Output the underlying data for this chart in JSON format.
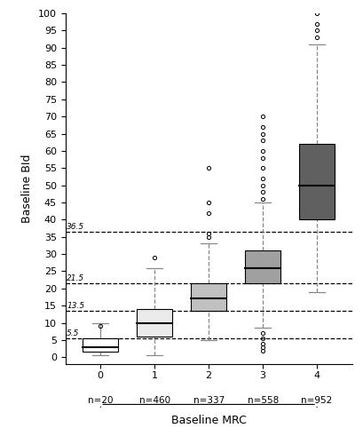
{
  "xlabel": "Baseline MRC",
  "ylabel": "Baseline BId",
  "ylim": [
    -2,
    100
  ],
  "yticks": [
    0,
    5,
    10,
    15,
    20,
    25,
    30,
    35,
    40,
    45,
    50,
    55,
    60,
    65,
    70,
    75,
    80,
    85,
    90,
    95,
    100
  ],
  "group_labels": [
    "0",
    "1",
    "2",
    "3",
    "4"
  ],
  "n_labels": [
    "n=20",
    "n=460",
    "n=337",
    "n=558",
    "n=952"
  ],
  "box_colors": [
    "#ffffff",
    "#ebebeb",
    "#c0c0c0",
    "#a0a0a0",
    "#606060"
  ],
  "box_stats": [
    {
      "q1": 1.5,
      "median": 3.0,
      "q3": 5.5,
      "whislo": 0.5,
      "whishi": 10.0,
      "fliers": [
        9.0
      ]
    },
    {
      "q1": 6.0,
      "median": 10.0,
      "q3": 14.0,
      "whislo": 0.5,
      "whishi": 26.0,
      "fliers": [
        29.0
      ]
    },
    {
      "q1": 13.5,
      "median": 17.0,
      "q3": 21.5,
      "whislo": 5.0,
      "whishi": 33.0,
      "fliers": [
        35.0,
        36.0,
        42.0,
        45.0,
        55.0
      ]
    },
    {
      "q1": 21.5,
      "median": 26.0,
      "q3": 31.0,
      "whislo": 8.5,
      "whishi": 45.0,
      "fliers": [
        2.0,
        3.0,
        4.0,
        5.5,
        7.0,
        46.0,
        48.0,
        50.0,
        52.0,
        55.0,
        58.0,
        60.0,
        63.0,
        65.0,
        67.0,
        70.0
      ]
    },
    {
      "q1": 40.0,
      "median": 50.0,
      "q3": 62.0,
      "whislo": 19.0,
      "whishi": 91.0,
      "fliers": [
        93.0,
        95.0,
        97.0,
        100.0
      ]
    }
  ],
  "hlines": [
    5.5,
    13.5,
    21.5,
    36.5
  ],
  "hline_labels": [
    "5.5",
    "13.5",
    "21.5",
    "36.5"
  ]
}
